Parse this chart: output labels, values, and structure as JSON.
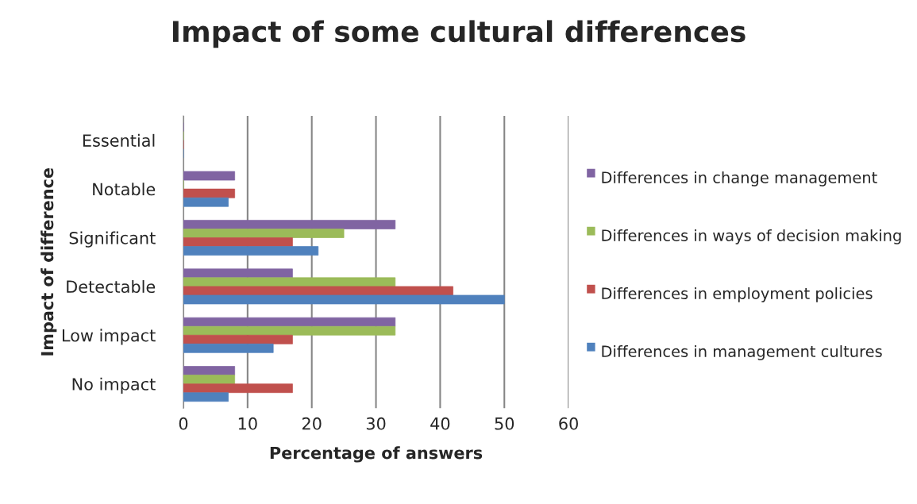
{
  "chart_data": {
    "type": "bar",
    "orientation": "horizontal",
    "title": "Impact of some cultural differences",
    "xlabel": "Percentage of answers",
    "ylabel": "Impact of difference",
    "categories": [
      "Essential",
      "Notable",
      "Significant",
      "Detectable",
      "Low impact",
      "No impact"
    ],
    "series": [
      {
        "name": "Differences in change management",
        "color": "#8064a2",
        "values": [
          0,
          8,
          33,
          17,
          33,
          8
        ]
      },
      {
        "name": "Differences in ways of decision making",
        "color": "#9bbb59",
        "values": [
          0,
          0,
          25,
          33,
          33,
          8
        ]
      },
      {
        "name": "Differences in employment policies",
        "color": "#c0504d",
        "values": [
          0,
          8,
          17,
          42,
          17,
          17
        ]
      },
      {
        "name": "Differences in management cultures",
        "color": "#4f81bd",
        "values": [
          0,
          7,
          21,
          50,
          14,
          7
        ]
      }
    ],
    "xlim": [
      0,
      60
    ],
    "xticks": [
      0,
      10,
      20,
      30,
      40,
      50,
      60
    ],
    "grid": "x",
    "legend": "right"
  }
}
